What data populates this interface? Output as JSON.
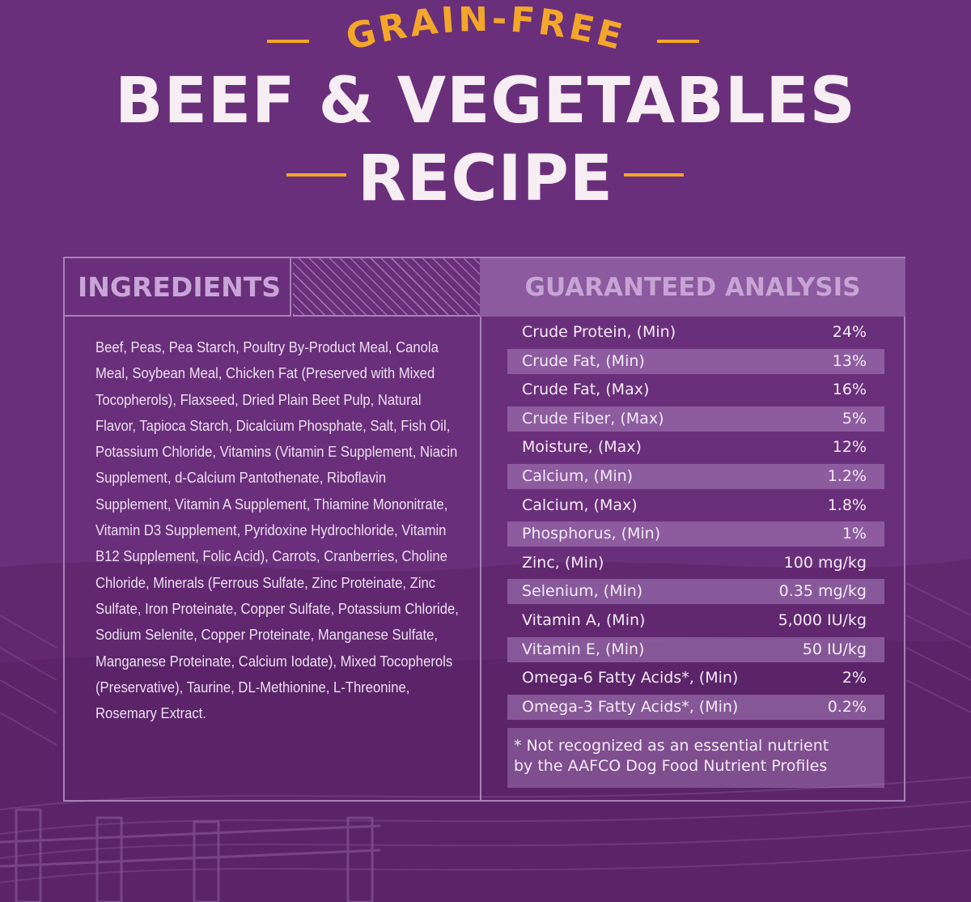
{
  "header": {
    "subtitle": "GRAIN-FREE",
    "title_line1": "BEEF & VEGETABLES",
    "title_line2": "RECIPE"
  },
  "ingredients": {
    "heading": "INGREDIENTS",
    "text": "Beef, Peas, Pea Starch, Poultry By-Product Meal, Canola Meal, Soybean Meal, Chicken Fat (Preserved with Mixed Tocopherols), Flaxseed, Dried Plain Beet Pulp, Natural Flavor, Tapioca Starch, Dicalcium Phosphate, Salt, Fish Oil, Potassium Chloride, Vitamins (Vitamin E Supplement, Niacin Supplement, d-Calcium Pantothenate, Riboflavin Supplement, Vitamin A Supplement, Thiamine Mononitrate, Vitamin D3 Supplement, Pyridoxine Hydrochloride, Vitamin B12 Supplement, Folic Acid), Carrots, Cranberries, Choline Chloride, Minerals (Ferrous Sulfate, Zinc Proteinate, Zinc Sulfate, Iron Proteinate, Copper Sulfate, Potassium Chloride, Sodium Selenite, Copper Proteinate, Manganese Sulfate, Manganese Proteinate, Calcium Iodate), Mixed Tocopherols (Preservative), Taurine, DL-Methionine, L-Threonine, Rosemary Extract."
  },
  "analysis": {
    "heading": "GUARANTEED ANALYSIS",
    "rows": [
      {
        "label": "Crude Protein, (Min)",
        "value": "24%"
      },
      {
        "label": "Crude Fat, (Min)",
        "value": "13%"
      },
      {
        "label": "Crude Fat, (Max)",
        "value": "16%"
      },
      {
        "label": "Crude Fiber, (Max)",
        "value": "5%"
      },
      {
        "label": "Moisture, (Max)",
        "value": "12%"
      },
      {
        "label": "Calcium, (Min)",
        "value": "1.2%"
      },
      {
        "label": "Calcium, (Max)",
        "value": "1.8%"
      },
      {
        "label": "Phosphorus, (Min)",
        "value": "1%"
      },
      {
        "label": "Zinc, (Min)",
        "value": "100 mg/kg"
      },
      {
        "label": "Selenium, (Min)",
        "value": "0.35 mg/kg"
      },
      {
        "label": "Vitamin A, (Min)",
        "value": "5,000 IU/kg"
      },
      {
        "label": "Vitamin E, (Min)",
        "value": "50 IU/kg"
      },
      {
        "label": "Omega-6 Fatty Acids*, (Min)",
        "value": "2%"
      },
      {
        "label": "Omega-3 Fatty Acids*, (Min)",
        "value": "0.2%"
      }
    ],
    "footnote_line1": "* Not recognized as an essential nutrient",
    "footnote_line2": "by the AAFCO Dog Food Nutrient Profiles"
  },
  "colors": {
    "background": "#6a2f7a",
    "accent_orange": "#f3a629",
    "title_text": "#f6eef3",
    "heading_lavender": "#c9a4d8"
  }
}
